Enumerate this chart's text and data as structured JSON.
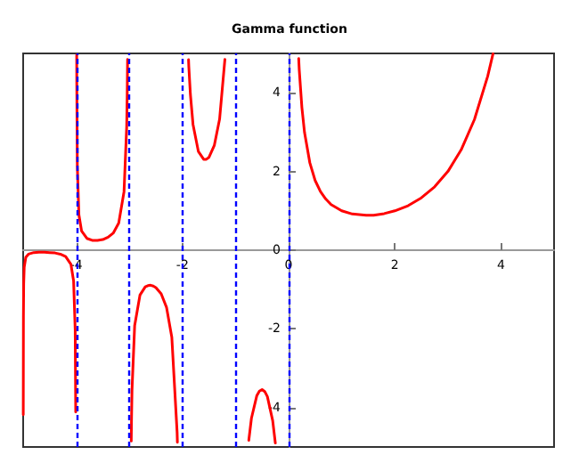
{
  "chart_data": {
    "type": "line",
    "title": "Gamma function",
    "x": [
      -4.998,
      -4.995,
      -4.99,
      -4.98,
      -4.95,
      -4.9,
      -4.8,
      -4.7,
      -4.6,
      -4.5,
      -4.4,
      -4.3,
      -4.2,
      -4.1,
      -4.05,
      -4.02,
      -4.01,
      -4,
      -3.9915,
      -3.99,
      -3.98,
      -3.95,
      -3.9,
      -3.8,
      -3.7,
      -3.6,
      -3.5,
      -3.4,
      -3.3,
      -3.2,
      -3.1,
      -3.05,
      -3.04,
      -3.033,
      -3,
      -2.964,
      -2.96,
      -2.95,
      -2.9,
      -2.8,
      -2.7,
      -2.65,
      -2.6,
      -2.55,
      -2.5,
      -2.4,
      -2.3,
      -2.2,
      -2.1,
      -2.095,
      -2,
      -1.885,
      -1.88,
      -1.85,
      -1.8,
      -1.7,
      -1.6,
      -1.55,
      -1.5,
      -1.4,
      -1.3,
      -1.2,
      -1,
      -0.75,
      -0.7,
      -0.6,
      -0.55,
      -0.5,
      -0.45,
      -0.4,
      -0.3,
      -0.25,
      0,
      0.19,
      0.2,
      0.25,
      0.3,
      0.4,
      0.5,
      0.6,
      0.7,
      0.8,
      1,
      1.2,
      1.46,
      1.6,
      1.8,
      2,
      2.25,
      2.5,
      2.75,
      3,
      3.25,
      3.5,
      3.75,
      3.85
    ],
    "series": [
      {
        "color": "#ff0000",
        "values": [
          -4.18,
          -1.68,
          -0.85,
          -0.43,
          -0.18,
          -0.1,
          -0.06,
          -0.05,
          -0.05,
          -0.06,
          -0.07,
          -0.1,
          -0.16,
          -0.36,
          -0.78,
          -2.02,
          -4.11,
          null,
          4.96,
          4.23,
          2.15,
          0.9,
          0.49,
          0.3,
          0.25,
          0.25,
          0.27,
          0.33,
          0.44,
          0.69,
          1.49,
          3.14,
          3.97,
          4.85,
          null,
          -4.85,
          -4.39,
          -3.56,
          -1.92,
          -1.14,
          -0.93,
          -0.9,
          -0.89,
          -0.91,
          -0.95,
          -1.11,
          -1.45,
          -2.21,
          -4.63,
          -4.88,
          null,
          4.84,
          4.67,
          3.96,
          3.19,
          2.51,
          2.31,
          2.31,
          2.36,
          2.66,
          3.33,
          4.85,
          null,
          -4.83,
          -4.27,
          -3.7,
          -3.58,
          -3.54,
          -3.59,
          -3.72,
          -4.33,
          -4.9,
          null,
          4.87,
          4.59,
          3.63,
          2.99,
          2.22,
          1.77,
          1.49,
          1.3,
          1.16,
          1,
          0.92,
          0.89,
          0.89,
          0.93,
          1,
          1.13,
          1.33,
          1.61,
          2,
          2.55,
          3.32,
          4.42,
          4.99
        ]
      }
    ],
    "xlim": [
      -5,
      5
    ],
    "xticks": [
      -4,
      -2,
      0,
      2,
      4
    ],
    "ylim": [
      -5,
      5
    ],
    "yticks": [
      -4,
      -2,
      0,
      2,
      4
    ],
    "ref_lines": [
      {
        "axis": "x",
        "value": -4,
        "color": "#0000ff",
        "line_style": "dashed"
      },
      {
        "axis": "x",
        "value": -3,
        "color": "#0000ff",
        "line_style": "dashed"
      },
      {
        "axis": "x",
        "value": -2,
        "color": "#0000ff",
        "line_style": "dashed"
      },
      {
        "axis": "x",
        "value": -1,
        "color": "#0000ff",
        "line_style": "dashed"
      },
      {
        "axis": "x",
        "value": 0,
        "color": "#0000ff",
        "line_style": "dashed"
      }
    ],
    "grid": false,
    "marker": "none",
    "line_style": "solid"
  }
}
